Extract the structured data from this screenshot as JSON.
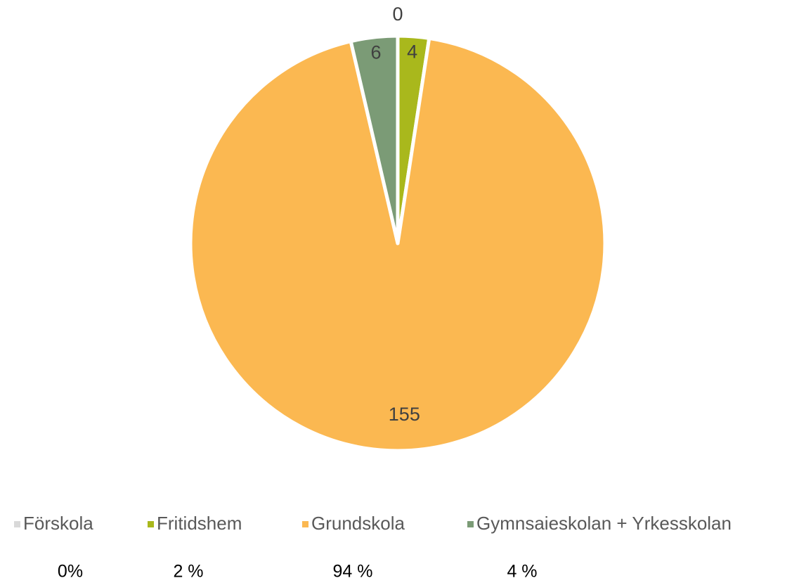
{
  "chart_data": {
    "type": "pie",
    "categories": [
      "Förskola",
      "Fritidshem",
      "Grundskola",
      "Gymnsaieskolan + Yrkesskolan"
    ],
    "values": [
      0,
      4,
      155,
      6
    ],
    "colors": [
      "#d9d9d9",
      "#a9b81c",
      "#fbb851",
      "#7b9b76"
    ],
    "percent_labels": [
      "0%",
      "2 %",
      "94 %",
      "4 %"
    ],
    "legend": "bottom"
  }
}
